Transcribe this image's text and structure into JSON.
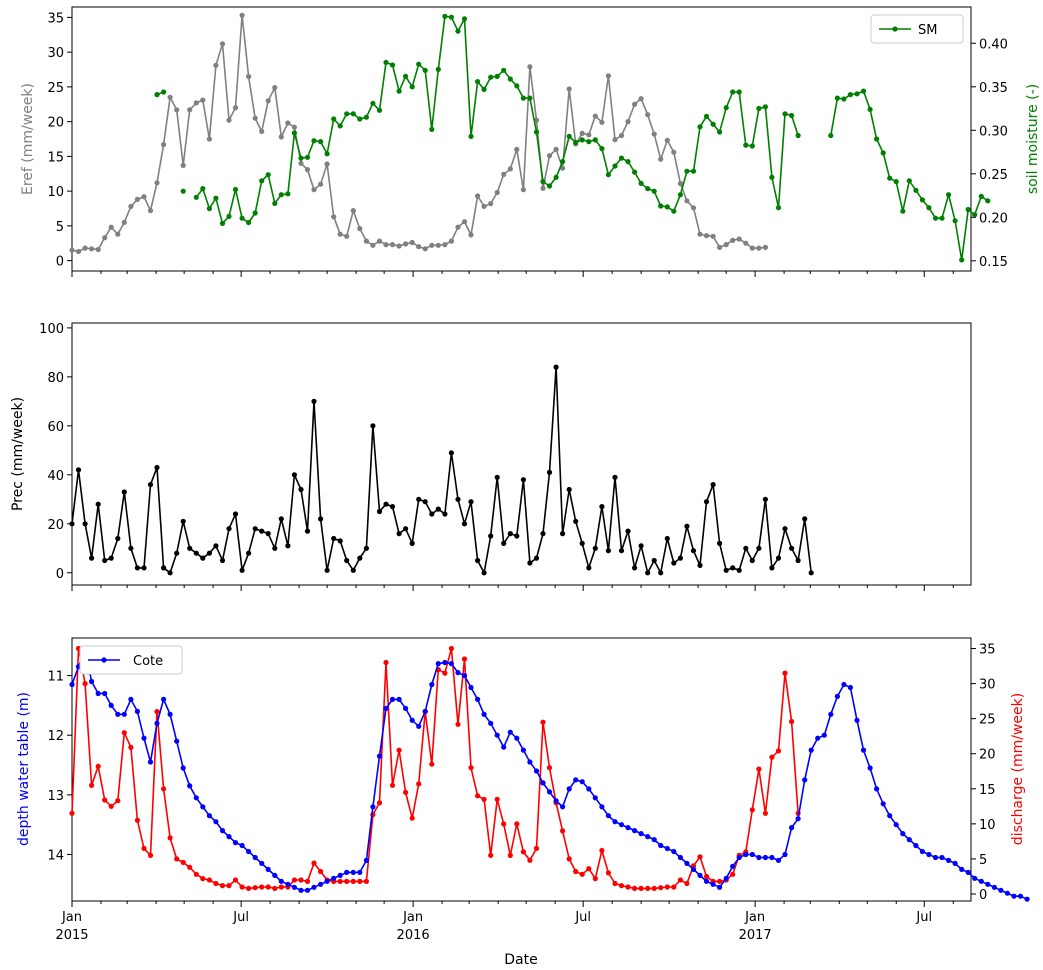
{
  "chart_data": [
    {
      "type": "line",
      "panel": "top",
      "ylabel": "Eref (mm/week)",
      "ylabel_color": "#808080",
      "y2label": "soil moisture (-)",
      "y2label_color": "#008000",
      "ylim": [
        -1.5,
        36.5
      ],
      "y2lim": [
        0.1383,
        0.4417
      ],
      "yticks": [
        0,
        5,
        10,
        15,
        20,
        25,
        30,
        35
      ],
      "y2ticks": [
        "0.15",
        "0.20",
        "0.25",
        "0.30",
        "0.35",
        "0.40"
      ],
      "legend": {
        "position": "top-right",
        "entries": [
          "SM"
        ]
      },
      "series": [
        {
          "name": "Eref",
          "color": "#808080",
          "axis": "left",
          "x_start": "2015-01-01",
          "x_step_days": 7,
          "values": [
            1.5,
            1.3,
            1.8,
            1.7,
            1.6,
            3.3,
            4.8,
            3.8,
            5.5,
            7.8,
            8.8,
            9.2,
            7.2,
            11.2,
            16.7,
            23.5,
            21.7,
            13.7,
            21.7,
            22.7,
            23.1,
            17.5,
            28.1,
            31.2,
            20.2,
            22.0,
            35.3,
            26.5,
            20.5,
            18.6,
            23.0,
            24.9,
            17.8,
            19.8,
            19.2,
            14.0,
            13.1,
            10.2,
            11.0,
            13.9,
            6.3,
            3.8,
            3.5,
            7.2,
            4.6,
            2.8,
            2.2,
            2.8,
            2.3,
            2.3,
            2.1,
            2.4,
            2.6,
            2.0,
            1.7,
            2.2,
            2.2,
            2.3,
            2.8,
            4.8,
            5.6,
            3.7,
            9.3,
            7.8,
            8.2,
            9.8,
            12.4,
            13.2,
            16.0,
            10.2,
            27.9,
            20.2,
            10.4,
            15.1,
            16.0,
            13.3,
            24.7,
            16.8,
            18.3,
            18.1,
            20.8,
            19.9,
            26.6,
            17.4,
            18.0,
            20.0,
            22.5,
            23.3,
            21.0,
            18.2,
            14.6,
            17.3,
            15.6,
            11.1,
            8.6,
            7.6,
            3.8,
            3.6,
            3.5,
            1.9,
            2.3,
            2.9,
            3.1,
            2.5,
            1.8,
            1.8,
            1.9
          ]
        },
        {
          "name": "SM",
          "color": "#008000",
          "axis": "right",
          "x_start": "2015-01-01",
          "x_step_days": 7,
          "values": [
            null,
            null,
            null,
            null,
            null,
            null,
            null,
            null,
            null,
            null,
            null,
            null,
            null,
            0.341,
            0.344,
            null,
            null,
            0.23,
            null,
            0.223,
            0.233,
            0.21,
            0.222,
            0.193,
            0.201,
            0.232,
            0.199,
            0.194,
            0.205,
            0.242,
            0.249,
            0.216,
            0.226,
            0.227,
            0.297,
            0.268,
            0.269,
            0.288,
            0.287,
            0.273,
            0.313,
            0.305,
            0.319,
            0.319,
            0.313,
            0.315,
            0.331,
            0.323,
            0.378,
            0.375,
            0.345,
            0.362,
            0.35,
            0.376,
            0.369,
            0.301,
            0.37,
            0.431,
            0.43,
            0.414,
            0.428,
            0.293,
            0.356,
            0.347,
            0.361,
            0.362,
            0.369,
            0.359,
            0.351,
            0.337,
            0.337,
            0.298,
            0.241,
            0.236,
            0.246,
            0.264,
            0.293,
            0.286,
            0.289,
            0.287,
            0.289,
            0.279,
            0.249,
            0.259,
            0.268,
            0.264,
            0.252,
            0.239,
            0.233,
            0.23,
            0.213,
            0.212,
            0.207,
            0.226,
            0.253,
            0.253,
            0.304,
            0.316,
            0.307,
            0.298,
            0.326,
            0.344,
            0.344,
            0.283,
            0.282,
            0.325,
            0.327,
            0.246,
            0.211,
            0.319,
            0.317,
            0.294,
            null,
            null,
            null,
            null,
            0.294,
            0.337,
            0.336,
            0.341,
            0.342,
            0.345,
            0.324,
            0.29,
            0.274,
            0.245,
            0.241,
            0.207,
            0.242,
            0.231,
            0.22,
            0.211,
            0.199,
            0.199,
            0.226,
            0.196,
            0.151,
            0.209,
            0.203,
            0.224,
            0.219
          ]
        }
      ]
    },
    {
      "type": "line",
      "panel": "middle",
      "ylabel": "Prec (mm/week)",
      "ylim": [
        -5,
        102
      ],
      "yticks": [
        0,
        20,
        40,
        60,
        80,
        100
      ],
      "series": [
        {
          "name": "Prec",
          "color": "#000000",
          "x_start": "2015-01-01",
          "x_step_days": 7,
          "values": [
            20,
            42,
            20,
            6,
            28,
            5,
            6,
            14,
            33,
            10,
            2,
            2,
            36,
            43,
            2,
            0,
            8,
            21,
            10,
            8,
            6,
            8,
            11,
            5,
            18,
            24,
            1,
            8,
            18,
            17,
            16,
            10,
            22,
            11,
            40,
            34,
            17,
            70,
            22,
            1,
            14,
            13,
            5,
            1,
            6,
            10,
            60,
            25,
            28,
            27,
            16,
            18,
            12,
            30,
            29,
            24,
            26,
            24,
            49,
            30,
            20,
            29,
            5,
            0,
            15,
            39,
            12,
            16,
            15,
            38,
            4,
            6,
            16,
            41,
            84,
            16,
            34,
            21,
            12,
            2,
            10,
            27,
            9,
            39,
            9,
            17,
            2,
            11,
            0,
            5,
            0,
            14,
            4,
            6,
            19,
            9,
            3,
            29,
            36,
            12,
            1,
            2,
            1,
            10,
            5,
            10,
            30,
            2,
            6,
            18,
            10,
            5,
            22,
            0
          ]
        }
      ]
    },
    {
      "type": "line",
      "panel": "bottom",
      "xlabel": "Date",
      "ylabel": "depth water table (m)",
      "ylabel_color": "#0000ff",
      "y2label": "discharge (mm/week)",
      "y2label_color": "#ff0000",
      "ylim": [
        14.78,
        10.37
      ],
      "y2lim": [
        -1,
        36.5
      ],
      "yticks": [
        11,
        12,
        13,
        14
      ],
      "y2ticks": [
        0,
        5,
        10,
        15,
        20,
        25,
        30,
        35
      ],
      "legend": {
        "position": "top-left",
        "entries": [
          "Cote"
        ]
      },
      "xticks": [
        {
          "date": "2015-01-01",
          "label": "Jan",
          "label2": "2015"
        },
        {
          "date": "2015-07-01",
          "label": "Jul",
          "label2": ""
        },
        {
          "date": "2016-01-01",
          "label": "Jan",
          "label2": "2016"
        },
        {
          "date": "2016-07-01",
          "label": "Jul",
          "label2": ""
        },
        {
          "date": "2017-01-01",
          "label": "Jan",
          "label2": "2017"
        },
        {
          "date": "2017-07-01",
          "label": "Jul",
          "label2": ""
        }
      ],
      "xlim": [
        "2015-01-01",
        "2017-08-20"
      ],
      "series": [
        {
          "name": "Cote",
          "color": "#0000ff",
          "axis": "left",
          "x_start": "2015-01-01",
          "x_step_days": 7,
          "values": [
            11.15,
            10.85,
            10.55,
            11.1,
            11.3,
            11.3,
            11.5,
            11.65,
            11.65,
            11.4,
            11.6,
            12.05,
            12.45,
            11.8,
            11.4,
            11.65,
            12.1,
            12.55,
            12.85,
            13.05,
            13.2,
            13.35,
            13.45,
            13.6,
            13.7,
            13.8,
            13.85,
            13.95,
            14.05,
            14.15,
            14.25,
            14.35,
            14.45,
            14.5,
            14.55,
            14.6,
            14.6,
            14.55,
            14.5,
            14.45,
            14.4,
            14.35,
            14.3,
            14.3,
            14.3,
            14.1,
            13.2,
            12.35,
            11.55,
            11.4,
            11.4,
            11.55,
            11.75,
            11.85,
            11.6,
            11.15,
            10.8,
            10.78,
            10.8,
            10.95,
            11.0,
            11.2,
            11.4,
            11.65,
            11.8,
            12.0,
            12.2,
            11.95,
            12.05,
            12.25,
            12.45,
            12.6,
            12.8,
            12.95,
            13.1,
            13.2,
            12.9,
            12.75,
            12.78,
            12.9,
            13.05,
            13.2,
            13.35,
            13.45,
            13.5,
            13.55,
            13.6,
            13.65,
            13.7,
            13.75,
            13.85,
            13.9,
            13.95,
            14.05,
            14.15,
            14.25,
            14.35,
            14.45,
            14.5,
            14.55,
            14.4,
            14.2,
            14.05,
            14.0,
            14.0,
            14.05,
            14.05,
            14.05,
            14.1,
            14.0,
            13.55,
            13.4,
            12.75,
            12.25,
            12.05,
            12.0,
            11.65,
            11.35,
            11.15,
            11.2,
            11.75,
            12.25,
            12.55,
            12.9,
            13.15,
            13.35,
            13.5,
            13.65,
            13.75,
            13.85,
            13.95,
            14.0,
            14.05,
            14.05,
            14.1,
            14.15,
            14.25,
            14.3,
            14.4,
            14.45,
            14.5,
            14.55,
            14.6,
            14.65,
            14.7,
            14.7,
            14.75
          ]
        },
        {
          "name": "discharge",
          "color": "#ff0000",
          "axis": "right",
          "x_start": "2015-01-01",
          "x_step_days": 7,
          "values": [
            11.5,
            35,
            30,
            15.5,
            18.2,
            13.4,
            12.5,
            13.3,
            23,
            20.9,
            10.5,
            6.5,
            5.5,
            26,
            15,
            8,
            5,
            4.5,
            3.8,
            2.8,
            2.2,
            2,
            1.5,
            1.2,
            1.2,
            2,
            1,
            0.8,
            0.9,
            1,
            1,
            0.8,
            1,
            1,
            2,
            2,
            1.8,
            4.4,
            3.2,
            2,
            1.8,
            1.8,
            1.8,
            1.8,
            1.8,
            1.8,
            11.3,
            13,
            33,
            15.5,
            20.5,
            14.5,
            10.8,
            15.7,
            26,
            18.5,
            32,
            31.5,
            35,
            24.2,
            33.5,
            18,
            14,
            13.5,
            5.5,
            13.5,
            10,
            5.5,
            10,
            6,
            4.8,
            6.5,
            24.5,
            18,
            13,
            9,
            5,
            3.2,
            2.8,
            3.6,
            2.2,
            6.2,
            3,
            1.5,
            1.2,
            1,
            0.8,
            0.8,
            0.8,
            0.8,
            0.9,
            1,
            1,
            2,
            1.5,
            4,
            5.3,
            2.5,
            1.8,
            1.8,
            2,
            2.8,
            5.5,
            6,
            12,
            17.8,
            11.5,
            19.5,
            20.4,
            31.5,
            24.6,
            11.5
          ]
        }
      ]
    }
  ]
}
